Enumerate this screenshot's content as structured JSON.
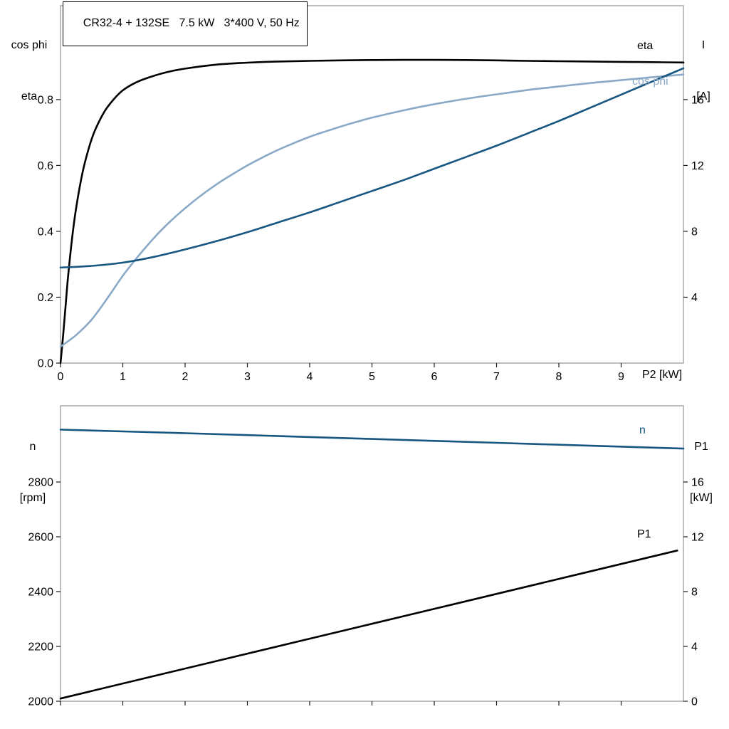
{
  "title": "CR32-4 + 132SE   7.5 kW   3*400 V, 50 Hz",
  "colors": {
    "black": "#000000",
    "dark_blue": "#175680",
    "light_blue": "#8aa9c7",
    "frame": "#929292",
    "tick": "#1a1a1a"
  },
  "axis_titles": {
    "top_left": [
      "cos phi",
      "eta"
    ],
    "top_right": [
      "I",
      "[A]"
    ],
    "bottom_left": [
      "n",
      "[rpm]"
    ],
    "bottom_right": [
      "P1",
      "[kW]"
    ]
  },
  "chart_data": [
    {
      "type": "line",
      "name": "motor-efficiency-current-chart",
      "x_axis": {
        "range": [
          0,
          10
        ],
        "ticks": [
          0,
          1,
          2,
          3,
          4,
          5,
          6,
          7,
          8,
          9
        ],
        "tick_labels": [
          "0",
          "1",
          "2",
          "3",
          "4",
          "5",
          "6",
          "7",
          "8",
          "9"
        ],
        "title": "P2 [kW]"
      },
      "left_axis": {
        "label": "cos phi / eta",
        "range": [
          0,
          1.085
        ],
        "ticks": [
          0,
          0.2,
          0.4,
          0.6,
          0.8
        ],
        "tick_labels": [
          "0.0",
          "0.2",
          "0.4",
          "0.6",
          "0.8"
        ]
      },
      "right_axis": {
        "label": "I [A]",
        "range": [
          0,
          21.7
        ],
        "ticks": [
          4,
          8,
          12,
          16
        ],
        "tick_labels": [
          "4",
          "8",
          "12",
          "16"
        ]
      },
      "series": [
        {
          "name": "eta",
          "label": "eta",
          "axis": "left",
          "color": "#000000",
          "points": [
            [
              0,
              0
            ],
            [
              0.04,
              0.08
            ],
            [
              0.08,
              0.17
            ],
            [
              0.12,
              0.26
            ],
            [
              0.18,
              0.37
            ],
            [
              0.25,
              0.47
            ],
            [
              0.35,
              0.575
            ],
            [
              0.45,
              0.65
            ],
            [
              0.55,
              0.705
            ],
            [
              0.7,
              0.762
            ],
            [
              0.85,
              0.8
            ],
            [
              1.0,
              0.828
            ],
            [
              1.2,
              0.851
            ],
            [
              1.4,
              0.866
            ],
            [
              1.7,
              0.883
            ],
            [
              2.0,
              0.894
            ],
            [
              2.5,
              0.906
            ],
            [
              3.0,
              0.912
            ],
            [
              3.5,
              0.9155
            ],
            [
              4.0,
              0.9175
            ],
            [
              4.5,
              0.919
            ],
            [
              5.0,
              0.92
            ],
            [
              5.5,
              0.9205
            ],
            [
              6.0,
              0.9205
            ],
            [
              6.5,
              0.92
            ],
            [
              7.0,
              0.919
            ],
            [
              7.5,
              0.9175
            ],
            [
              8.0,
              0.9165
            ],
            [
              8.5,
              0.9155
            ],
            [
              9.0,
              0.9145
            ],
            [
              9.5,
              0.9135
            ],
            [
              10,
              0.9125
            ]
          ]
        },
        {
          "name": "cos phi",
          "label": "cos phi",
          "axis": "left",
          "color": "#8aa9c7",
          "points": [
            [
              0,
              0.05
            ],
            [
              0.25,
              0.085
            ],
            [
              0.5,
              0.132
            ],
            [
              0.75,
              0.196
            ],
            [
              1.0,
              0.265
            ],
            [
              1.25,
              0.325
            ],
            [
              1.5,
              0.38
            ],
            [
              1.75,
              0.428
            ],
            [
              2.0,
              0.47
            ],
            [
              2.25,
              0.508
            ],
            [
              2.5,
              0.542
            ],
            [
              2.75,
              0.572
            ],
            [
              3.0,
              0.6
            ],
            [
              3.25,
              0.625
            ],
            [
              3.5,
              0.648
            ],
            [
              3.75,
              0.668
            ],
            [
              4.0,
              0.687
            ],
            [
              4.25,
              0.703
            ],
            [
              4.5,
              0.718
            ],
            [
              4.75,
              0.732
            ],
            [
              5.0,
              0.745
            ],
            [
              5.5,
              0.767
            ],
            [
              6.0,
              0.786
            ],
            [
              6.5,
              0.802
            ],
            [
              7.0,
              0.816
            ],
            [
              7.5,
              0.829
            ],
            [
              8.0,
              0.84
            ],
            [
              8.5,
              0.85
            ],
            [
              9.0,
              0.859
            ],
            [
              9.5,
              0.868
            ],
            [
              10,
              0.876
            ]
          ]
        },
        {
          "name": "I",
          "label": "",
          "axis": "right",
          "color": "#175680",
          "points": [
            [
              0,
              5.8
            ],
            [
              0.5,
              5.9
            ],
            [
              1.0,
              6.1
            ],
            [
              1.5,
              6.45
            ],
            [
              2.0,
              6.9
            ],
            [
              2.5,
              7.4
            ],
            [
              3.0,
              7.95
            ],
            [
              3.5,
              8.55
            ],
            [
              4.0,
              9.15
            ],
            [
              4.5,
              9.8
            ],
            [
              5.0,
              10.45
            ],
            [
              5.5,
              11.1
            ],
            [
              6.0,
              11.8
            ],
            [
              6.5,
              12.5
            ],
            [
              7.0,
              13.2
            ],
            [
              7.5,
              13.95
            ],
            [
              8.0,
              14.7
            ],
            [
              8.5,
              15.5
            ],
            [
              9.0,
              16.3
            ],
            [
              9.5,
              17.1
            ],
            [
              10,
              17.9
            ]
          ]
        }
      ]
    },
    {
      "type": "line",
      "name": "motor-speed-power-chart",
      "x_axis": {
        "range": [
          0,
          10
        ],
        "ticks": [
          0,
          1,
          2,
          3,
          4,
          5,
          6,
          7,
          8,
          9
        ],
        "tick_labels": [
          "",
          "",
          "",
          "",
          "",
          "",
          "",
          "",
          "",
          ""
        ],
        "title": ""
      },
      "left_axis": {
        "label": "n [rpm]",
        "range": [
          2000,
          3078
        ],
        "ticks": [
          2000,
          2200,
          2400,
          2600,
          2800
        ],
        "tick_labels": [
          "2000",
          "2200",
          "2400",
          "2600",
          "2800"
        ]
      },
      "right_axis": {
        "label": "P1 [kW]",
        "range": [
          0,
          21.56
        ],
        "ticks": [
          0,
          4,
          8,
          12,
          16
        ],
        "tick_labels": [
          "0",
          "4",
          "8",
          "12",
          "16"
        ]
      },
      "series": [
        {
          "name": "n",
          "label": "n",
          "axis": "left",
          "color": "#175680",
          "points": [
            [
              0,
              2991
            ],
            [
              2,
              2978
            ],
            [
              4,
              2964
            ],
            [
              6,
              2950
            ],
            [
              8,
              2936
            ],
            [
              10,
              2922
            ]
          ]
        },
        {
          "name": "P1",
          "label": "P1",
          "axis": "right",
          "color": "#000000",
          "points": [
            [
              0,
              0.2
            ],
            [
              2.5,
              2.93
            ],
            [
              5,
              5.65
            ],
            [
              7.5,
              8.38
            ],
            [
              9.9,
              11.0
            ]
          ]
        }
      ]
    }
  ]
}
